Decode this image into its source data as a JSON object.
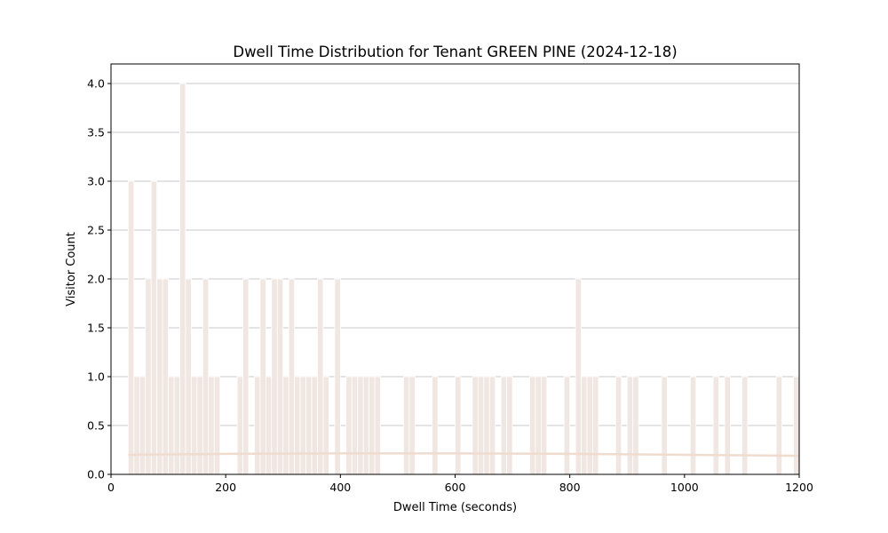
{
  "chart_data": {
    "type": "bar",
    "title": "Dwell Time Distribution for Tenant GREEN PINE (2024-12-18)",
    "xlabel": "Dwell Time (seconds)",
    "ylabel": "Visitor Count",
    "xlim": [
      0,
      1200
    ],
    "ylim": [
      0,
      4.2
    ],
    "x_ticks": [
      "0",
      "200",
      "400",
      "600",
      "800",
      "1000",
      "1200"
    ],
    "y_ticks": [
      "0.0",
      "0.5",
      "1.0",
      "1.5",
      "2.0",
      "2.5",
      "3.0",
      "3.5",
      "4.0"
    ],
    "grid": "y",
    "bar_width": 10,
    "bar_color": "#f0e6e2",
    "density_line_color": "#efdccf",
    "x": [
      35,
      45,
      55,
      65,
      75,
      85,
      95,
      105,
      115,
      125,
      135,
      145,
      155,
      165,
      175,
      185,
      225,
      235,
      255,
      265,
      275,
      285,
      295,
      305,
      315,
      325,
      335,
      345,
      355,
      365,
      375,
      395,
      415,
      425,
      435,
      445,
      455,
      465,
      515,
      525,
      565,
      605,
      635,
      645,
      655,
      665,
      685,
      695,
      735,
      745,
      755,
      795,
      815,
      825,
      835,
      845,
      885,
      905,
      915,
      965,
      1015,
      1055,
      1075,
      1105,
      1165,
      1195
    ],
    "values": [
      3,
      1,
      1,
      2,
      3,
      2,
      2,
      1,
      1,
      4,
      2,
      1,
      1,
      2,
      1,
      1,
      1,
      2,
      1,
      2,
      1,
      2,
      2,
      1,
      2,
      1,
      1,
      1,
      1,
      2,
      1,
      2,
      1,
      1,
      1,
      1,
      1,
      1,
      1,
      1,
      1,
      1,
      1,
      1,
      1,
      1,
      1,
      1,
      1,
      1,
      1,
      1,
      2,
      1,
      1,
      1,
      1,
      1,
      1,
      1,
      1,
      1,
      1,
      1,
      1,
      1
    ],
    "density_line": {
      "x": [
        30,
        200,
        400,
        600,
        800,
        1000,
        1200
      ],
      "y": [
        0.2,
        0.21,
        0.215,
        0.215,
        0.21,
        0.2,
        0.19
      ]
    }
  }
}
